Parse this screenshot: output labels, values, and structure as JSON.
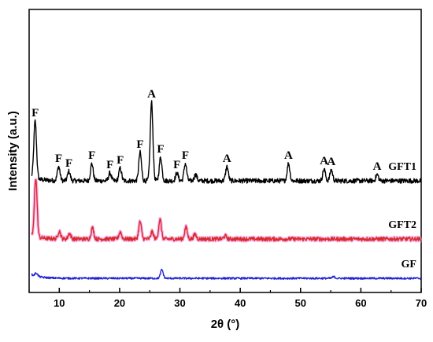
{
  "chart_data": {
    "type": "line",
    "xlabel": "2θ (°)",
    "ylabel": "Intensity (a.u.)",
    "xlim": [
      5,
      70
    ],
    "x_ticks": [
      "10",
      "20",
      "30",
      "40",
      "50",
      "60",
      "70"
    ],
    "y_ticks_shown": false,
    "grid": false,
    "series": [
      {
        "name": "GFT1",
        "color": "#000000",
        "baseline": 142,
        "noise": 3,
        "peaks": [
          {
            "x": 6.0,
            "h": 73
          },
          {
            "x": 9.9,
            "h": 18
          },
          {
            "x": 11.6,
            "h": 12
          },
          {
            "x": 15.4,
            "h": 22
          },
          {
            "x": 18.4,
            "h": 10
          },
          {
            "x": 20.1,
            "h": 16
          },
          {
            "x": 23.4,
            "h": 36
          },
          {
            "x": 25.3,
            "h": 100
          },
          {
            "x": 26.8,
            "h": 30
          },
          {
            "x": 29.5,
            "h": 10
          },
          {
            "x": 30.9,
            "h": 22
          },
          {
            "x": 32.6,
            "h": 8
          },
          {
            "x": 37.8,
            "h": 18
          },
          {
            "x": 48.0,
            "h": 22
          },
          {
            "x": 53.9,
            "h": 15
          },
          {
            "x": 55.1,
            "h": 14
          },
          {
            "x": 62.7,
            "h": 8
          }
        ]
      },
      {
        "name": "GFT2",
        "color": "#dc2a2a",
        "baseline": 68,
        "noise": 2.5,
        "peaks": [
          {
            "x": 6.1,
            "h": 75
          },
          {
            "x": 10.0,
            "h": 10
          },
          {
            "x": 11.7,
            "h": 7
          },
          {
            "x": 15.5,
            "h": 14
          },
          {
            "x": 20.1,
            "h": 9
          },
          {
            "x": 23.4,
            "h": 22
          },
          {
            "x": 25.4,
            "h": 9
          },
          {
            "x": 26.7,
            "h": 25
          },
          {
            "x": 31.0,
            "h": 15
          },
          {
            "x": 32.5,
            "h": 6
          },
          {
            "x": 37.5,
            "h": 4
          }
        ]
      },
      {
        "name": "GF",
        "color": "#2323d6",
        "baseline": 18,
        "noise": 1.2,
        "peaks": [
          {
            "x": 6.2,
            "h": 4
          },
          {
            "x": 27.0,
            "h": 11
          },
          {
            "x": 55.5,
            "h": 2
          }
        ]
      }
    ],
    "peak_labels": [
      {
        "text": "F",
        "x": 6.0,
        "series": "GFT1"
      },
      {
        "text": "F",
        "x": 9.9,
        "series": "GFT1"
      },
      {
        "text": "F",
        "x": 11.6,
        "series": "GFT1"
      },
      {
        "text": "F",
        "x": 15.4,
        "series": "GFT1"
      },
      {
        "text": "F",
        "x": 18.4,
        "series": "GFT1"
      },
      {
        "text": "F",
        "x": 20.1,
        "series": "GFT1"
      },
      {
        "text": "F",
        "x": 23.4,
        "series": "GFT1"
      },
      {
        "text": "A",
        "x": 25.3,
        "series": "GFT1"
      },
      {
        "text": "F",
        "x": 26.8,
        "series": "GFT1"
      },
      {
        "text": "F",
        "x": 29.5,
        "series": "GFT1"
      },
      {
        "text": "F",
        "x": 30.9,
        "series": "GFT1"
      },
      {
        "text": "A",
        "x": 37.8,
        "series": "GFT1"
      },
      {
        "text": "A",
        "x": 48.0,
        "series": "GFT1"
      },
      {
        "text": "A",
        "x": 53.9,
        "series": "GFT1"
      },
      {
        "text": "A",
        "x": 55.1,
        "series": "GFT1"
      },
      {
        "text": "A",
        "x": 62.7,
        "series": "GFT1"
      }
    ]
  }
}
